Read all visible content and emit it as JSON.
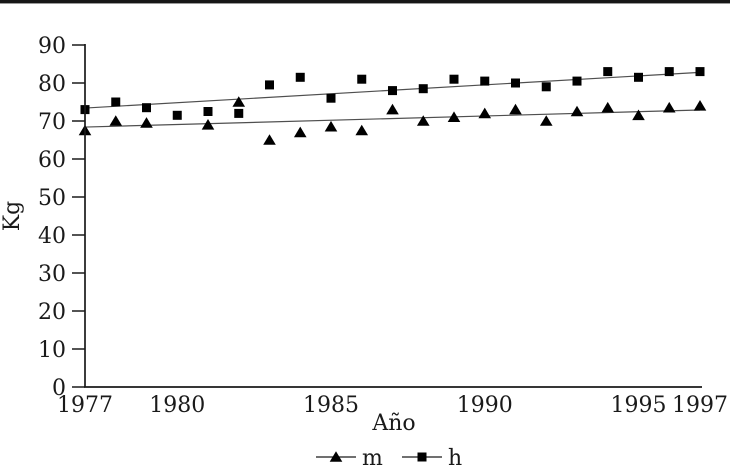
{
  "chart_data": {
    "type": "scatter",
    "title": "",
    "xlabel": "Año",
    "ylabel": "Kg",
    "xlim": [
      1977,
      1997
    ],
    "ylim": [
      0,
      90
    ],
    "x_ticks": [
      1977,
      1980,
      1985,
      1990,
      1995,
      1997
    ],
    "y_ticks": [
      0,
      10,
      20,
      30,
      40,
      50,
      60,
      70,
      80,
      90
    ],
    "grid": false,
    "legend_position": "bottom-center",
    "series": [
      {
        "name": "m",
        "marker": "triangle",
        "color": "#000000",
        "points": [
          [
            1977,
            67.5
          ],
          [
            1978,
            70
          ],
          [
            1979,
            69.5
          ],
          [
            1981,
            69
          ],
          [
            1982,
            75
          ],
          [
            1983,
            65
          ],
          [
            1984,
            67
          ],
          [
            1985,
            68.5
          ],
          [
            1986,
            67.5
          ],
          [
            1987,
            73
          ],
          [
            1988,
            70
          ],
          [
            1989,
            71
          ],
          [
            1990,
            72
          ],
          [
            1991,
            73
          ],
          [
            1992,
            70
          ],
          [
            1993,
            72.5
          ],
          [
            1994,
            73.5
          ],
          [
            1995,
            71.5
          ],
          [
            1996,
            73.5
          ],
          [
            1997,
            74
          ]
        ]
      },
      {
        "name": "h",
        "marker": "square",
        "color": "#000000",
        "points": [
          [
            1977,
            73
          ],
          [
            1978,
            75
          ],
          [
            1979,
            73.5
          ],
          [
            1980,
            71.5
          ],
          [
            1981,
            72.5
          ],
          [
            1982,
            72
          ],
          [
            1983,
            79.5
          ],
          [
            1984,
            81.5
          ],
          [
            1985,
            76
          ],
          [
            1986,
            81
          ],
          [
            1987,
            78
          ],
          [
            1988,
            78.5
          ],
          [
            1989,
            81
          ],
          [
            1990,
            80.5
          ],
          [
            1991,
            80
          ],
          [
            1992,
            79
          ],
          [
            1993,
            80.5
          ],
          [
            1994,
            83
          ],
          [
            1995,
            81.5
          ],
          [
            1996,
            83
          ],
          [
            1997,
            83
          ]
        ]
      }
    ],
    "trend_lines": [
      {
        "series": "m",
        "x": [
          1977,
          1997
        ],
        "y": [
          68.4,
          72.9
        ]
      },
      {
        "series": "h",
        "x": [
          1977,
          1997
        ],
        "y": [
          73.4,
          82.8
        ]
      }
    ],
    "colors": {
      "marker": "#000000",
      "trend_line": "#4f4f4f",
      "axis": "#1a1a1a",
      "text": "#1a1a1a",
      "background": "#ffffff",
      "top_rule": "#161616"
    }
  }
}
